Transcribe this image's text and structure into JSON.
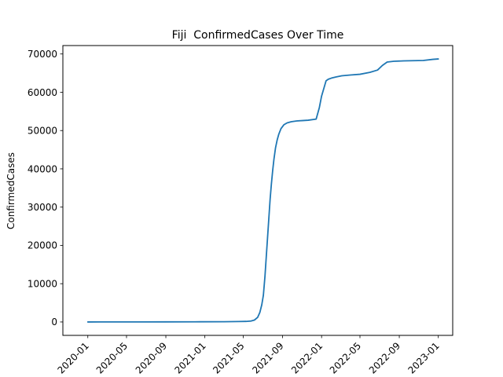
{
  "chart_data": {
    "type": "line",
    "title": "Fiji  ConfirmedCases Over Time",
    "xlabel": "",
    "ylabel": "ConfirmedCases",
    "x_type": "date",
    "xlim": [
      "2019-10-15",
      "2023-02-15"
    ],
    "ylim": [
      -3500,
      72200
    ],
    "grid": false,
    "legend": "none",
    "x_ticks": [
      "2020-01",
      "2020-05",
      "2020-09",
      "2021-01",
      "2021-05",
      "2021-09",
      "2022-01",
      "2022-05",
      "2022-09",
      "2023-01"
    ],
    "y_ticks": [
      0,
      10000,
      20000,
      30000,
      40000,
      50000,
      60000,
      70000
    ],
    "series": [
      {
        "color": "#1f77b4",
        "x": [
          "2020-01-01",
          "2020-03-20",
          "2020-06-01",
          "2020-09-01",
          "2020-12-01",
          "2021-03-01",
          "2021-04-15",
          "2021-05-10",
          "2021-05-25",
          "2021-06-05",
          "2021-06-15",
          "2021-06-22",
          "2021-06-28",
          "2021-07-03",
          "2021-07-08",
          "2021-07-12",
          "2021-07-16",
          "2021-07-20",
          "2021-07-24",
          "2021-07-28",
          "2021-08-01",
          "2021-08-05",
          "2021-08-10",
          "2021-08-15",
          "2021-08-20",
          "2021-08-27",
          "2021-09-05",
          "2021-09-15",
          "2021-09-28",
          "2021-10-15",
          "2021-11-01",
          "2021-11-20",
          "2021-12-15",
          "2021-12-25",
          "2022-01-01",
          "2022-01-08",
          "2022-01-15",
          "2022-01-22",
          "2022-02-01",
          "2022-02-15",
          "2022-03-05",
          "2022-04-01",
          "2022-05-01",
          "2022-06-01",
          "2022-06-25",
          "2022-07-10",
          "2022-07-25",
          "2022-08-15",
          "2022-09-15",
          "2022-10-15",
          "2022-11-15",
          "2022-12-15",
          "2023-01-01"
        ],
        "y": [
          0,
          18,
          20,
          30,
          45,
          70,
          110,
          150,
          250,
          500,
          1200,
          2500,
          4500,
          7000,
          12000,
          17000,
          22000,
          27000,
          32000,
          36000,
          39500,
          42500,
          45500,
          47500,
          49000,
          50500,
          51500,
          52000,
          52300,
          52500,
          52600,
          52700,
          53000,
          56000,
          59000,
          61000,
          63000,
          63400,
          63700,
          64000,
          64300,
          64500,
          64700,
          65200,
          65800,
          67000,
          67900,
          68100,
          68200,
          68250,
          68300,
          68600,
          68700
        ]
      }
    ]
  }
}
